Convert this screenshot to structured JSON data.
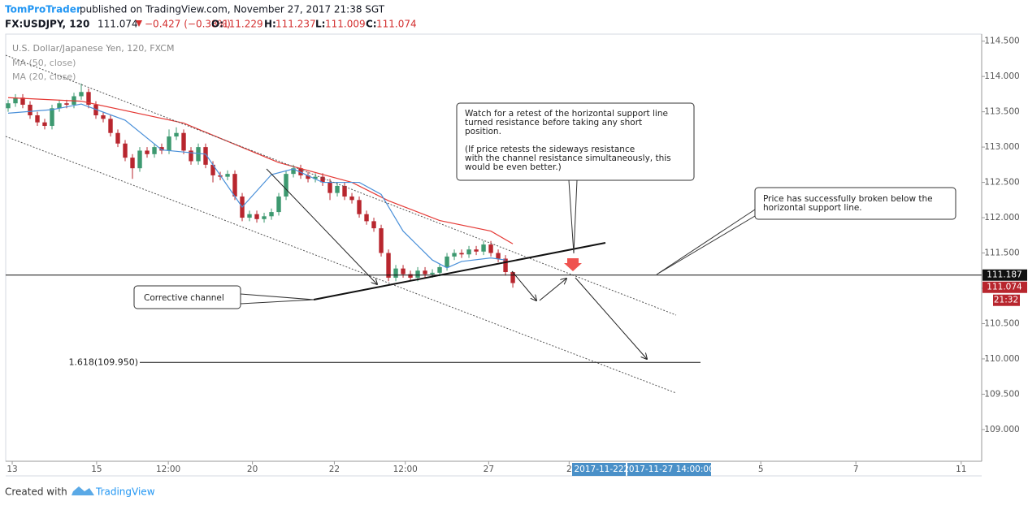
{
  "header": {
    "author": "TomProTrader",
    "published": "published on TradingView.com, November 27, 2017 21:38 SGT",
    "symbol": "FX:USDJPY, 120",
    "change": "−0.427 (−0.38%)",
    "o_label": "O:",
    "h_label": "H:",
    "l_label": "L:",
    "c_label": "C:"
  },
  "footer": {
    "created": "Created with",
    "brand": "TradingView"
  },
  "chart_data": {
    "type": "candlestick",
    "title": "U.S. Dollar/Japanese Yen, 120, FXCM",
    "up_color": "#3d9970",
    "down_color": "#b8262e",
    "x": [
      0,
      1,
      2,
      3,
      4,
      5,
      6,
      7,
      8,
      9,
      10,
      11,
      12,
      13,
      14,
      15,
      16,
      17,
      18,
      19,
      20,
      21,
      22,
      23,
      24,
      25,
      26,
      27,
      28,
      29,
      30,
      31,
      32,
      33,
      34,
      35,
      36,
      37,
      38,
      39,
      40,
      41,
      42,
      43,
      44,
      45,
      46,
      47,
      48,
      49,
      50,
      51,
      52,
      53,
      54,
      55,
      56,
      57,
      58,
      59,
      60,
      61,
      62,
      63,
      64,
      65,
      66,
      67,
      68,
      69
    ],
    "open": [
      113.55,
      113.62,
      113.7,
      113.6,
      113.45,
      113.35,
      113.3,
      113.55,
      113.62,
      113.6,
      113.72,
      113.78,
      113.6,
      113.45,
      113.4,
      113.2,
      113.05,
      112.85,
      112.7,
      112.95,
      112.9,
      113.0,
      112.95,
      113.15,
      113.2,
      112.95,
      112.8,
      113.0,
      112.75,
      112.6,
      112.58,
      112.62,
      112.3,
      112.0,
      112.05,
      111.98,
      112.02,
      112.08,
      112.3,
      112.62,
      112.7,
      112.6,
      112.55,
      112.58,
      112.5,
      112.35,
      112.45,
      112.3,
      112.25,
      112.05,
      111.95,
      111.85,
      111.5,
      111.15,
      111.28,
      111.2,
      111.15,
      111.25,
      111.2,
      111.22,
      111.3,
      111.45,
      111.5,
      111.48,
      111.55,
      111.52,
      111.62,
      111.5,
      111.42,
      111.229
    ],
    "high": [
      113.67,
      113.75,
      113.75,
      113.65,
      113.5,
      113.4,
      113.6,
      113.67,
      113.67,
      113.77,
      113.9,
      113.83,
      113.65,
      113.5,
      113.45,
      113.25,
      113.1,
      112.9,
      113.0,
      113.0,
      113.05,
      113.05,
      113.25,
      113.28,
      113.25,
      113.0,
      113.05,
      113.05,
      112.8,
      112.65,
      112.67,
      112.67,
      112.35,
      112.1,
      112.1,
      112.07,
      112.13,
      112.35,
      112.67,
      112.75,
      112.75,
      112.65,
      112.63,
      112.63,
      112.55,
      112.5,
      112.5,
      112.35,
      112.3,
      112.1,
      112.0,
      111.9,
      111.55,
      111.33,
      111.33,
      111.25,
      111.3,
      111.3,
      111.27,
      111.35,
      111.5,
      111.55,
      111.55,
      111.6,
      111.6,
      111.67,
      111.67,
      111.55,
      111.47,
      111.237
    ],
    "low": [
      113.5,
      113.57,
      113.55,
      113.4,
      113.3,
      113.25,
      113.25,
      113.5,
      113.55,
      113.55,
      113.67,
      113.55,
      113.4,
      113.35,
      113.15,
      113.0,
      112.8,
      112.55,
      112.65,
      112.85,
      112.85,
      112.9,
      112.9,
      113.1,
      112.9,
      112.75,
      112.75,
      112.7,
      112.5,
      112.53,
      112.53,
      112.25,
      111.95,
      111.95,
      111.93,
      111.93,
      111.97,
      112.03,
      112.25,
      112.57,
      112.55,
      112.5,
      112.5,
      112.45,
      112.25,
      112.3,
      112.25,
      112.2,
      112.0,
      111.9,
      111.8,
      111.45,
      111.1,
      111.1,
      111.15,
      111.1,
      111.1,
      111.15,
      111.15,
      111.17,
      111.25,
      111.4,
      111.43,
      111.43,
      111.47,
      111.47,
      111.45,
      111.37,
      111.18,
      111.009
    ],
    "close": [
      113.62,
      113.7,
      113.6,
      113.45,
      113.35,
      113.3,
      113.55,
      113.62,
      113.6,
      113.72,
      113.78,
      113.6,
      113.45,
      113.4,
      113.2,
      113.05,
      112.85,
      112.7,
      112.95,
      112.9,
      113.0,
      112.95,
      113.15,
      113.2,
      112.95,
      112.8,
      113.0,
      112.75,
      112.6,
      112.58,
      112.62,
      112.3,
      112.0,
      112.05,
      111.98,
      112.02,
      112.08,
      112.3,
      112.62,
      112.7,
      112.6,
      112.55,
      112.58,
      112.5,
      112.35,
      112.45,
      112.3,
      112.25,
      112.05,
      111.95,
      111.85,
      111.5,
      111.15,
      111.28,
      111.2,
      111.15,
      111.25,
      111.2,
      111.22,
      111.3,
      111.45,
      111.5,
      111.48,
      111.55,
      111.52,
      111.62,
      111.5,
      111.42,
      111.23,
      111.074
    ],
    "series": [
      {
        "name": "MA (50, close)",
        "color": "#e53935",
        "x": [
          0,
          10,
          24,
          37,
          47,
          52,
          59,
          66,
          69
        ],
        "values": [
          113.7,
          113.65,
          113.34,
          112.78,
          112.5,
          112.24,
          111.96,
          111.81,
          111.63
        ]
      },
      {
        "name": "MA (20, close)",
        "color": "#4a90d9",
        "x": [
          0,
          6,
          10,
          16,
          21,
          27,
          32,
          36,
          39,
          43,
          48,
          51,
          54,
          58,
          60,
          62,
          66,
          68
        ],
        "values": [
          113.48,
          113.53,
          113.61,
          113.38,
          112.96,
          112.9,
          112.15,
          112.61,
          112.69,
          112.5,
          112.5,
          112.33,
          111.81,
          111.4,
          111.29,
          111.38,
          111.43,
          111.4
        ]
      }
    ],
    "xlim": [
      -0.333,
      133.1
    ],
    "xticks": [
      {
        "value": 0.56,
        "label": "13"
      },
      {
        "value": 12.1,
        "label": "15"
      },
      {
        "value": 21.9,
        "label": "12:00"
      },
      {
        "value": 33.4,
        "label": "20"
      },
      {
        "value": 44.6,
        "label": "22"
      },
      {
        "value": 54.3,
        "label": "12:00"
      },
      {
        "value": 65.7,
        "label": "27"
      },
      {
        "value": 76.7,
        "label": "2"
      },
      {
        "value": 102.9,
        "label": "5"
      },
      {
        "value": 115.9,
        "label": "7"
      },
      {
        "value": 130.3,
        "label": "11"
      }
    ],
    "ylim": [
      108.55,
      114.6
    ],
    "yticks": [
      {
        "value": 109,
        "label": "109.000"
      },
      {
        "value": 109.5,
        "label": "109.500"
      },
      {
        "value": 110,
        "label": "110.000"
      },
      {
        "value": 110.5,
        "label": "110.500"
      },
      {
        "value": 111,
        "label": "111.000"
      },
      {
        "value": 111.5,
        "label": "111.500"
      },
      {
        "value": 112,
        "label": "112.000"
      },
      {
        "value": 112.5,
        "label": "112.500"
      },
      {
        "value": 113,
        "label": "113.000"
      },
      {
        "value": 113.5,
        "label": "113.500"
      },
      {
        "value": 114,
        "label": "114.000"
      },
      {
        "value": 114.5,
        "label": "114.500"
      }
    ],
    "hline": {
      "value": 111.187
    },
    "fib": {
      "value": 109.95,
      "label": "1.618(109.950)"
    },
    "countdown": "21:32",
    "crosshair": [
      "2017-11-22",
      "2017-11-27 14:00:00"
    ],
    "annotations": [
      {
        "lines": [
          "Watch for a retest of the horizontal support line",
          "turned resistance before taking any short",
          "position.",
          "(If price retests the sideways resistance",
          "with the channel resistance simultaneously, this",
          "would be even better.)"
        ]
      },
      {
        "lines": [
          "Price has successfully broken below the",
          "horizontal support line."
        ]
      },
      {
        "lines": [
          "Corrective channel"
        ]
      }
    ]
  }
}
